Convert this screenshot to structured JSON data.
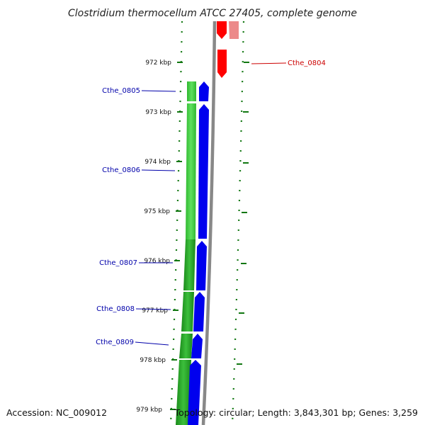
{
  "title": "Clostridium thermocellum ATCC 27405, complete genome",
  "footer": {
    "accession": "Accession: NC_009012",
    "summary": "Topology: circular; Length: 3,843,301 bp; Genes: 3,259"
  },
  "colors": {
    "forward_cds": "#0000ee",
    "reverse_cds": "#ff0000",
    "gc_content": "#33cc33",
    "backbone": "#888888",
    "ruler": "#117711",
    "label_forward": "#0000aa",
    "label_reverse": "#cc0000"
  },
  "tick_labels": [
    "972 kbp",
    "973 kbp",
    "974 kbp",
    "975 kbp",
    "976 kbp",
    "977 kbp",
    "978 kbp",
    "979 kbp"
  ],
  "gene_labels": [
    {
      "name": "Cthe_0804",
      "strand": "reverse"
    },
    {
      "name": "Cthe_0805",
      "strand": "forward"
    },
    {
      "name": "Cthe_0806",
      "strand": "forward"
    },
    {
      "name": "Cthe_0807",
      "strand": "forward"
    },
    {
      "name": "Cthe_0808",
      "strand": "forward"
    },
    {
      "name": "Cthe_0809",
      "strand": "forward"
    }
  ]
}
